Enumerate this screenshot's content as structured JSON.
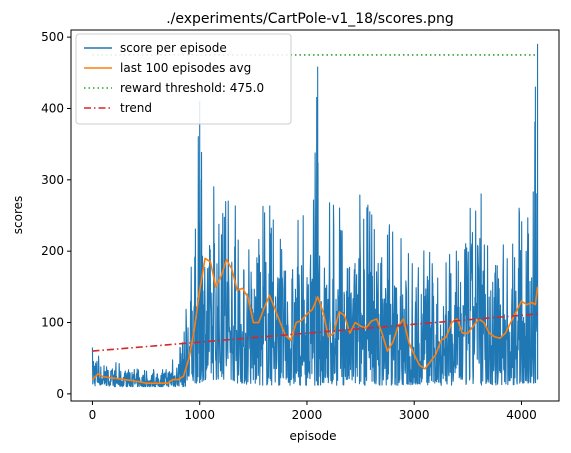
{
  "chart_data": {
    "type": "line",
    "title": "./experiments/CartPole-v1_18/scores.png",
    "xlabel": "episode",
    "ylabel": "scores",
    "xlim": [
      -200,
      4350
    ],
    "ylim": [
      -10,
      510
    ],
    "xticks": [
      0,
      1000,
      2000,
      3000,
      4000
    ],
    "yticks": [
      0,
      100,
      200,
      300,
      400,
      500
    ],
    "grid": false,
    "legend_position": "top-left",
    "series": [
      {
        "name": "score per episode",
        "style": "solid",
        "color": "#1f77b4",
        "kind": "noisy",
        "x": [
          0,
          50,
          100,
          200,
          300,
          400,
          500,
          600,
          700,
          800,
          850,
          900,
          950,
          1000,
          1050,
          1100,
          1150,
          1200,
          1250,
          1300,
          1350,
          1400,
          1450,
          1500,
          1600,
          1700,
          1800,
          1900,
          2000,
          2050,
          2100,
          2150,
          2200,
          2300,
          2400,
          2500,
          2600,
          2700,
          2800,
          2900,
          3000,
          3100,
          3200,
          3300,
          3400,
          3500,
          3600,
          3700,
          3800,
          3900,
          4000,
          4050,
          4100,
          4130,
          4150
        ],
        "low": [
          10,
          12,
          12,
          10,
          10,
          10,
          10,
          10,
          10,
          10,
          10,
          12,
          15,
          15,
          20,
          20,
          20,
          20,
          20,
          20,
          15,
          15,
          12,
          12,
          12,
          12,
          12,
          12,
          12,
          12,
          12,
          12,
          12,
          12,
          12,
          12,
          12,
          12,
          12,
          12,
          12,
          12,
          12,
          12,
          12,
          12,
          12,
          12,
          12,
          12,
          15,
          15,
          15,
          15,
          20
        ],
        "high": [
          95,
          60,
          45,
          45,
          40,
          35,
          35,
          35,
          45,
          60,
          110,
          170,
          220,
          410,
          300,
          280,
          330,
          325,
          280,
          310,
          260,
          240,
          250,
          250,
          270,
          260,
          230,
          250,
          250,
          230,
          458,
          260,
          270,
          270,
          240,
          300,
          260,
          270,
          230,
          220,
          200,
          250,
          190,
          210,
          240,
          290,
          320,
          210,
          260,
          200,
          280,
          240,
          290,
          430,
          490
        ]
      },
      {
        "name": "last 100 episodes avg",
        "style": "solid",
        "color": "#ff7f0e",
        "x": [
          0,
          50,
          100,
          200,
          300,
          400,
          500,
          600,
          700,
          750,
          800,
          850,
          900,
          950,
          1000,
          1050,
          1100,
          1150,
          1200,
          1250,
          1300,
          1350,
          1400,
          1450,
          1500,
          1550,
          1600,
          1650,
          1700,
          1750,
          1800,
          1850,
          1900,
          1950,
          2000,
          2050,
          2100,
          2150,
          2200,
          2250,
          2300,
          2350,
          2400,
          2450,
          2500,
          2550,
          2600,
          2650,
          2700,
          2750,
          2800,
          2850,
          2900,
          2950,
          3000,
          3050,
          3100,
          3150,
          3200,
          3250,
          3300,
          3350,
          3400,
          3450,
          3500,
          3550,
          3600,
          3650,
          3700,
          3750,
          3800,
          3850,
          3900,
          3950,
          4000,
          4050,
          4100,
          4130,
          4150
        ],
        "y": [
          20,
          28,
          24,
          22,
          20,
          18,
          15,
          15,
          15,
          20,
          20,
          25,
          50,
          90,
          145,
          190,
          185,
          150,
          165,
          188,
          175,
          145,
          148,
          135,
          100,
          100,
          120,
          138,
          120,
          100,
          82,
          75,
          100,
          103,
          112,
          118,
          136,
          115,
          80,
          85,
          115,
          110,
          85,
          100,
          95,
          92,
          102,
          105,
          85,
          60,
          72,
          95,
          105,
          72,
          55,
          40,
          35,
          45,
          55,
          75,
          80,
          100,
          105,
          85,
          85,
          95,
          105,
          100,
          85,
          80,
          78,
          85,
          100,
          115,
          130,
          125,
          128,
          125,
          150
        ]
      },
      {
        "name": "reward threshold: 475.0",
        "style": "dotted",
        "color": "#2ca02c",
        "x": [
          0,
          4150
        ],
        "y": [
          475,
          475
        ]
      },
      {
        "name": "trend",
        "style": "dashdot",
        "color": "#d62728",
        "x": [
          0,
          4150
        ],
        "y": [
          60,
          112
        ]
      }
    ]
  }
}
